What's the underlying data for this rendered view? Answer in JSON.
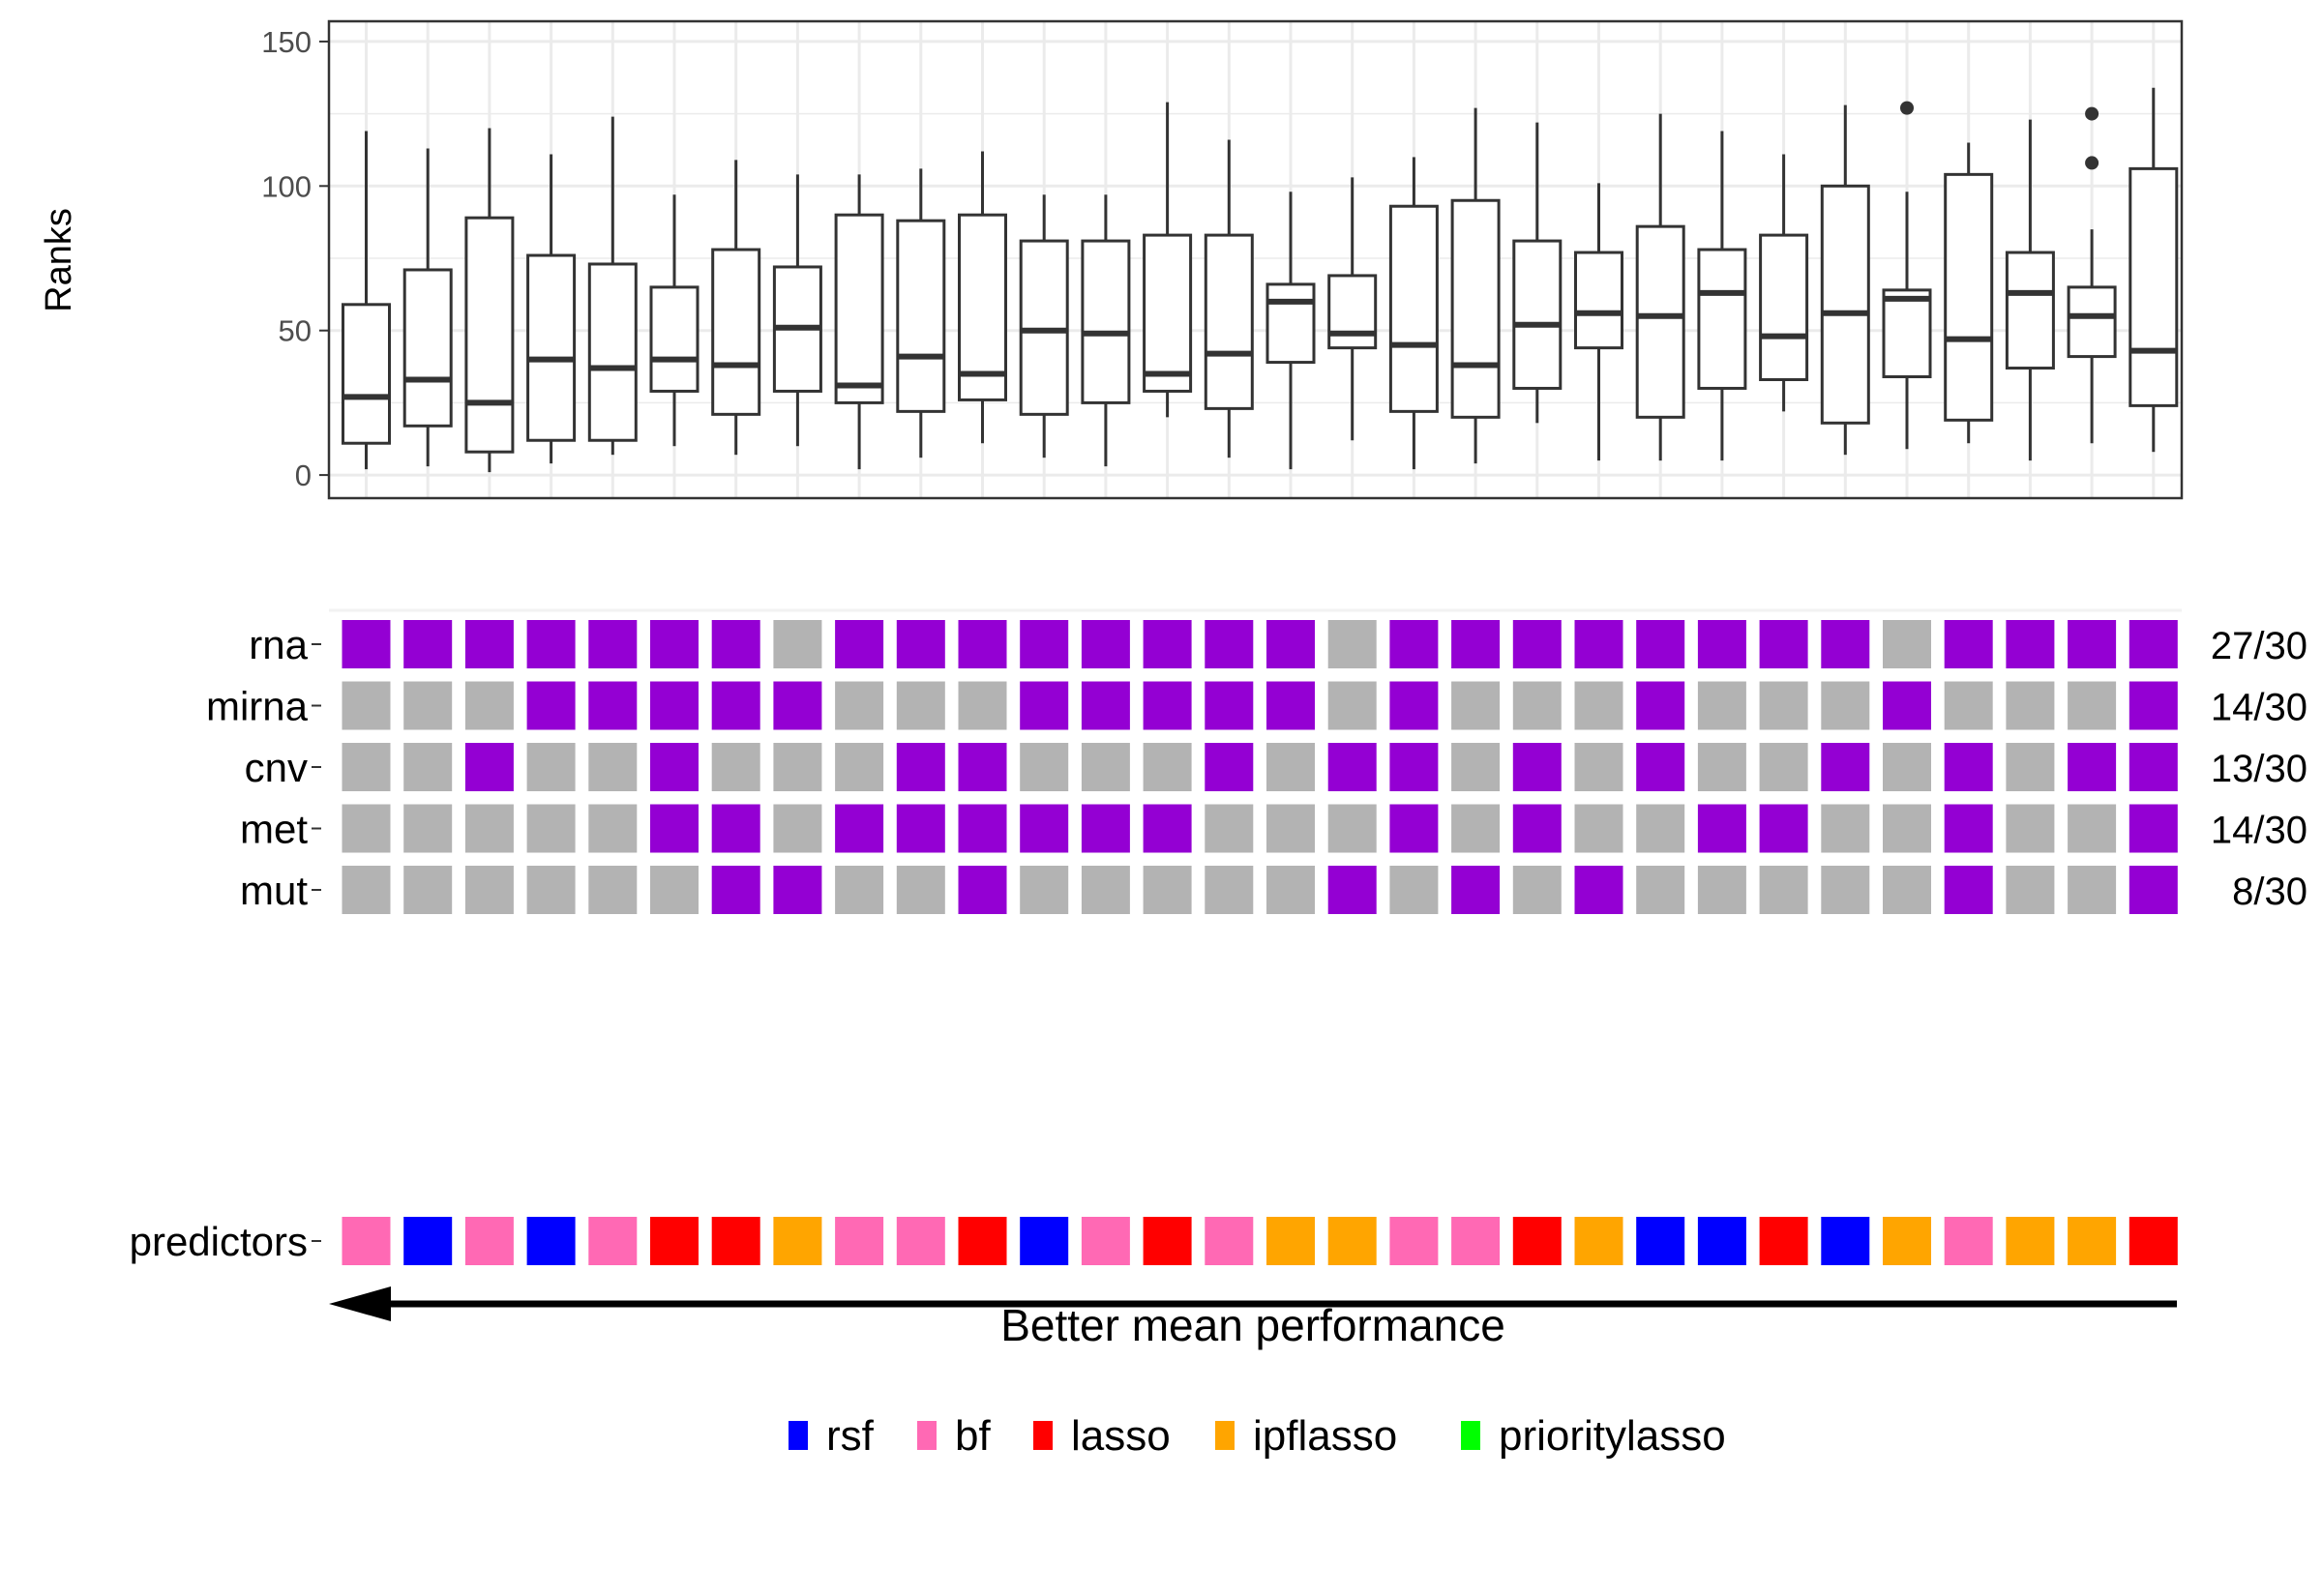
{
  "chart_data": {
    "type": "boxplot_with_tile_matrix",
    "boxplot": {
      "ylabel": "Ranks",
      "ylim": [
        -8,
        157
      ],
      "yticks": [
        0,
        50,
        100,
        150
      ],
      "grid": true,
      "boxes": [
        {
          "min": 2,
          "q1": 11,
          "median": 27,
          "q3": 59,
          "max": 119,
          "outliers": []
        },
        {
          "min": 3,
          "q1": 17,
          "median": 33,
          "q3": 71,
          "max": 113,
          "outliers": []
        },
        {
          "min": 1,
          "q1": 8,
          "median": 25,
          "q3": 89,
          "max": 120,
          "outliers": []
        },
        {
          "min": 4,
          "q1": 12,
          "median": 40,
          "q3": 76,
          "max": 111,
          "outliers": []
        },
        {
          "min": 7,
          "q1": 12,
          "median": 37,
          "q3": 73,
          "max": 124,
          "outliers": []
        },
        {
          "min": 10,
          "q1": 29,
          "median": 40,
          "q3": 65,
          "max": 97,
          "outliers": []
        },
        {
          "min": 7,
          "q1": 21,
          "median": 38,
          "q3": 78,
          "max": 109,
          "outliers": []
        },
        {
          "min": 10,
          "q1": 29,
          "median": 51,
          "q3": 72,
          "max": 104,
          "outliers": []
        },
        {
          "min": 2,
          "q1": 25,
          "median": 31,
          "q3": 90,
          "max": 104,
          "outliers": []
        },
        {
          "min": 6,
          "q1": 22,
          "median": 41,
          "q3": 88,
          "max": 106,
          "outliers": []
        },
        {
          "min": 11,
          "q1": 26,
          "median": 35,
          "q3": 90,
          "max": 112,
          "outliers": []
        },
        {
          "min": 6,
          "q1": 21,
          "median": 50,
          "q3": 81,
          "max": 97,
          "outliers": []
        },
        {
          "min": 3,
          "q1": 25,
          "median": 49,
          "q3": 81,
          "max": 97,
          "outliers": []
        },
        {
          "min": 20,
          "q1": 29,
          "median": 35,
          "q3": 83,
          "max": 129,
          "outliers": []
        },
        {
          "min": 6,
          "q1": 23,
          "median": 42,
          "q3": 83,
          "max": 116,
          "outliers": []
        },
        {
          "min": 2,
          "q1": 39,
          "median": 60,
          "q3": 66,
          "max": 98,
          "outliers": []
        },
        {
          "min": 12,
          "q1": 44,
          "median": 49,
          "q3": 69,
          "max": 103,
          "outliers": []
        },
        {
          "min": 2,
          "q1": 22,
          "median": 45,
          "q3": 93,
          "max": 110,
          "outliers": []
        },
        {
          "min": 4,
          "q1": 20,
          "median": 38,
          "q3": 95,
          "max": 127,
          "outliers": []
        },
        {
          "min": 18,
          "q1": 30,
          "median": 52,
          "q3": 81,
          "max": 122,
          "outliers": []
        },
        {
          "min": 5,
          "q1": 44,
          "median": 56,
          "q3": 77,
          "max": 101,
          "outliers": []
        },
        {
          "min": 5,
          "q1": 20,
          "median": 55,
          "q3": 86,
          "max": 125,
          "outliers": []
        },
        {
          "min": 5,
          "q1": 30,
          "median": 63,
          "q3": 78,
          "max": 119,
          "outliers": []
        },
        {
          "min": 22,
          "q1": 33,
          "median": 48,
          "q3": 83,
          "max": 111,
          "outliers": []
        },
        {
          "min": 7,
          "q1": 18,
          "median": 56,
          "q3": 100,
          "max": 128,
          "outliers": []
        },
        {
          "min": 9,
          "q1": 34,
          "median": 61,
          "q3": 64,
          "max": 98,
          "outliers": [
            127
          ]
        },
        {
          "min": 11,
          "q1": 19,
          "median": 47,
          "q3": 104,
          "max": 115,
          "outliers": []
        },
        {
          "min": 5,
          "q1": 37,
          "median": 63,
          "q3": 77,
          "max": 123,
          "outliers": []
        },
        {
          "min": 11,
          "q1": 41,
          "median": 55,
          "q3": 65,
          "max": 85,
          "outliers": [
            108,
            125
          ]
        },
        {
          "min": 8,
          "q1": 24,
          "median": 43,
          "q3": 106,
          "max": 134,
          "outliers": []
        }
      ]
    },
    "omics_matrix": {
      "rows": [
        {
          "label": "rna",
          "count_label": "27/30",
          "values": [
            1,
            1,
            1,
            1,
            1,
            1,
            1,
            0,
            1,
            1,
            1,
            1,
            1,
            1,
            1,
            1,
            0,
            1,
            1,
            1,
            1,
            1,
            1,
            1,
            1,
            0,
            1,
            1,
            1,
            1
          ]
        },
        {
          "label": "mirna",
          "count_label": "14/30",
          "values": [
            0,
            0,
            0,
            1,
            1,
            1,
            1,
            1,
            0,
            0,
            0,
            1,
            1,
            1,
            1,
            1,
            0,
            1,
            0,
            0,
            0,
            1,
            0,
            0,
            0,
            1,
            0,
            0,
            0,
            1
          ]
        },
        {
          "label": "cnv",
          "count_label": "13/30",
          "values": [
            0,
            0,
            1,
            0,
            0,
            1,
            0,
            0,
            0,
            1,
            1,
            0,
            0,
            0,
            1,
            0,
            1,
            1,
            0,
            1,
            0,
            1,
            0,
            0,
            1,
            0,
            1,
            0,
            1,
            1
          ]
        },
        {
          "label": "met",
          "count_label": "14/30",
          "values": [
            0,
            0,
            0,
            0,
            0,
            1,
            1,
            0,
            1,
            1,
            1,
            1,
            1,
            1,
            0,
            0,
            0,
            1,
            0,
            1,
            0,
            0,
            1,
            1,
            0,
            0,
            1,
            0,
            0,
            1
          ]
        },
        {
          "label": "mut",
          "count_label": "8/30",
          "values": [
            0,
            0,
            0,
            0,
            0,
            0,
            1,
            1,
            0,
            0,
            1,
            0,
            0,
            0,
            0,
            0,
            1,
            0,
            1,
            0,
            1,
            0,
            0,
            0,
            0,
            0,
            1,
            0,
            0,
            1
          ]
        }
      ],
      "on_color": "#9400D3",
      "off_color": "#B3B3B3"
    },
    "predictors": {
      "label": "predictors",
      "values": [
        "bf",
        "rsf",
        "bf",
        "rsf",
        "bf",
        "lasso",
        "lasso",
        "ipflasso",
        "bf",
        "bf",
        "lasso",
        "rsf",
        "bf",
        "lasso",
        "bf",
        "ipflasso",
        "ipflasso",
        "bf",
        "bf",
        "lasso",
        "ipflasso",
        "rsf",
        "rsf",
        "lasso",
        "rsf",
        "ipflasso",
        "bf",
        "ipflasso",
        "ipflasso",
        "lasso"
      ]
    },
    "arrow_label": "Better mean performance",
    "legend": [
      {
        "name": "rsf",
        "color": "#0000FF"
      },
      {
        "name": "bf",
        "color": "#FF69B4"
      },
      {
        "name": "lasso",
        "color": "#FF0000"
      },
      {
        "name": "ipflasso",
        "color": "#FFA500"
      },
      {
        "name": "prioritylasso",
        "color": "#00FF00"
      }
    ]
  }
}
